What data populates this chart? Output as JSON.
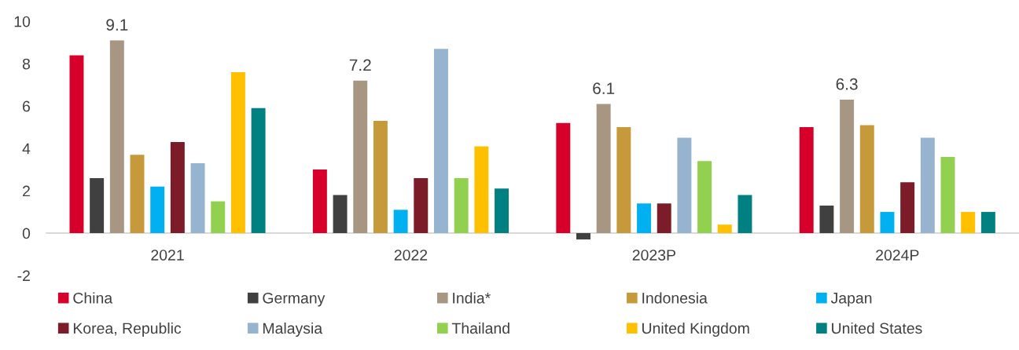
{
  "chart_data": {
    "type": "bar",
    "categories": [
      "2021",
      "2022",
      "2023P",
      "2024P"
    ],
    "series": [
      {
        "name": "China",
        "color": "#d7002a",
        "values": [
          8.4,
          3.0,
          5.2,
          5.0
        ]
      },
      {
        "name": "Germany",
        "color": "#404040",
        "values": [
          2.6,
          1.8,
          -0.3,
          1.3
        ]
      },
      {
        "name": "India*",
        "color": "#a69682",
        "values": [
          9.1,
          7.2,
          6.1,
          6.3
        ],
        "value_labels": [
          "9.1",
          "7.2",
          "6.1",
          "6.3"
        ]
      },
      {
        "name": "Indonesia",
        "color": "#c69a3b",
        "values": [
          3.7,
          5.3,
          5.0,
          5.1
        ]
      },
      {
        "name": "Japan",
        "color": "#00b0f0",
        "values": [
          2.2,
          1.1,
          1.4,
          1.0
        ]
      },
      {
        "name": "Korea, Republic",
        "color": "#7b1c28",
        "values": [
          4.3,
          2.6,
          1.4,
          2.4
        ]
      },
      {
        "name": "Malaysia",
        "color": "#96b3cf",
        "values": [
          3.3,
          8.7,
          4.5,
          4.5
        ]
      },
      {
        "name": "Thailand",
        "color": "#92d050",
        "values": [
          1.5,
          2.6,
          3.4,
          3.6
        ]
      },
      {
        "name": "United Kingdom",
        "color": "#ffc000",
        "values": [
          7.6,
          4.1,
          0.4,
          1.0
        ]
      },
      {
        "name": "United States",
        "color": "#008080",
        "values": [
          5.9,
          2.1,
          1.8,
          1.0
        ]
      }
    ],
    "ylim": [
      -2,
      10
    ],
    "yticks": [
      -2,
      0,
      2,
      4,
      6,
      8,
      10
    ],
    "grid": false,
    "legend": "bottom"
  }
}
